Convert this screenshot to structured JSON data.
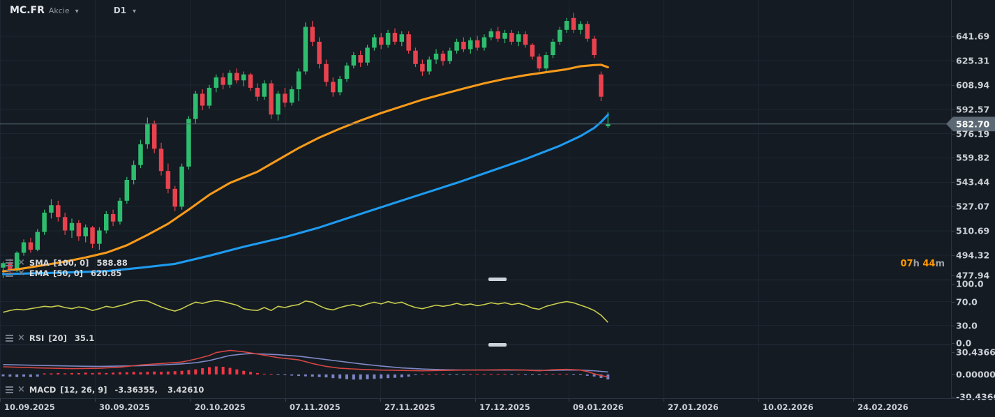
{
  "header": {
    "ticker": "MC.FR",
    "instrument_type": "Akcie",
    "timeframe": "D1"
  },
  "icons": {
    "chevron_down": "▾",
    "close": "×"
  },
  "legend": {
    "ma1": {
      "name": "SMA",
      "params": "[100, 0]",
      "value": "588.88"
    },
    "ma2": {
      "name": "EMA",
      "params": "[50, 0]",
      "value": "620.85"
    },
    "rsi": {
      "name": "RSI",
      "params": "[20]",
      "value": "35.1"
    },
    "macd": {
      "name": "MACD",
      "params": "[12, 26, 9]",
      "value1": "-3.36355,",
      "value2": "3.42610"
    }
  },
  "countdown": {
    "hours": "07",
    "hours_unit": "h",
    "minutes": "44",
    "minutes_unit": "m"
  },
  "axes": {
    "price_labels": [
      "641.69",
      "625.31",
      "608.94",
      "592.57",
      "576.19",
      "559.82",
      "543.44",
      "527.07",
      "510.69",
      "494.32",
      "477.94"
    ],
    "current_price_label": "582.70",
    "rsi_labels": [
      [
        "100.0",
        100
      ],
      [
        "70.0",
        70
      ],
      [
        "30.0",
        30
      ],
      [
        "0.0",
        0
      ]
    ],
    "macd_labels": [
      [
        "30.43660",
        30.4366
      ],
      [
        "0.00000",
        0
      ],
      [
        "-30.4366",
        -30.4366
      ]
    ],
    "dates": [
      "10.09.2025",
      "30.09.2025",
      "20.10.2025",
      "07.11.2025",
      "27.11.2025",
      "17.12.2025",
      "09.01.2026",
      "27.01.2026",
      "10.02.2026",
      "24.02.2026"
    ]
  },
  "colors": {
    "background": "#141b22",
    "grid": "#1d2631",
    "divider": "#232d3a",
    "axis_border": "#2a3440",
    "axis_text": "#ccd0d6",
    "bull": "#2ebd6e",
    "bear": "#e8424e",
    "ema_line": "#f79a1b",
    "sma_line": "#1e9bf0",
    "rsi_line": "#c9cd4e",
    "macd_line": "#d64543",
    "signal_line": "#8089c6",
    "hist_positive": "#f23645",
    "hist_negative": "#7c85c7",
    "price_line": "#5a6673",
    "price_tag_bg": "#5c6874",
    "countdown": "#ff9800",
    "grip": "#cfd4da"
  },
  "chart_data": {
    "type": "candlestick",
    "symbol": "MC.FR",
    "timeframe": "D1",
    "current_price": 582.7,
    "price_ylim": [
      477.94,
      657.5
    ],
    "candles_ohlc": [
      [
        486,
        490,
        479,
        489
      ],
      [
        489,
        492,
        482,
        484
      ],
      [
        484,
        497,
        483,
        496
      ],
      [
        496,
        505,
        494,
        503
      ],
      [
        503,
        506,
        496,
        498
      ],
      [
        498,
        512,
        497,
        510
      ],
      [
        510,
        525,
        508,
        523
      ],
      [
        523,
        532,
        519,
        528
      ],
      [
        528,
        531,
        517,
        520
      ],
      [
        520,
        523,
        508,
        511
      ],
      [
        511,
        519,
        506,
        516
      ],
      [
        516,
        518,
        504,
        507
      ],
      [
        507,
        515,
        503,
        513
      ],
      [
        513,
        514,
        499,
        502
      ],
      [
        502,
        513,
        498,
        511
      ],
      [
        511,
        524,
        509,
        522
      ],
      [
        522,
        525,
        514,
        517
      ],
      [
        517,
        533,
        515,
        531
      ],
      [
        531,
        547,
        529,
        545
      ],
      [
        545,
        558,
        542,
        555
      ],
      [
        555,
        572,
        553,
        569
      ],
      [
        569,
        587,
        566,
        583
      ],
      [
        583,
        585,
        563,
        566
      ],
      [
        566,
        570,
        548,
        551
      ],
      [
        551,
        556,
        536,
        539
      ],
      [
        539,
        541,
        524,
        527
      ],
      [
        527,
        556,
        525,
        554
      ],
      [
        554,
        588,
        552,
        586
      ],
      [
        586,
        605,
        583,
        603
      ],
      [
        603,
        606,
        592,
        595
      ],
      [
        595,
        609,
        593,
        607
      ],
      [
        607,
        616,
        604,
        614
      ],
      [
        614,
        617,
        606,
        609
      ],
      [
        609,
        619,
        607,
        617
      ],
      [
        617,
        620,
        610,
        612
      ],
      [
        612,
        618,
        608,
        616
      ],
      [
        616,
        617,
        605,
        607
      ],
      [
        607,
        610,
        598,
        601
      ],
      [
        601,
        612,
        599,
        610
      ],
      [
        610,
        612,
        586,
        589
      ],
      [
        589,
        605,
        585,
        603
      ],
      [
        603,
        607,
        594,
        597
      ],
      [
        597,
        608,
        595,
        606
      ],
      [
        606,
        620,
        598,
        618
      ],
      [
        618,
        651,
        616,
        648
      ],
      [
        648,
        652,
        635,
        638
      ],
      [
        638,
        641,
        620,
        623
      ],
      [
        623,
        626,
        608,
        611
      ],
      [
        611,
        614,
        601,
        604
      ],
      [
        604,
        615,
        602,
        613
      ],
      [
        613,
        624,
        611,
        622
      ],
      [
        622,
        631,
        620,
        629
      ],
      [
        629,
        632,
        621,
        624
      ],
      [
        624,
        636,
        622,
        634
      ],
      [
        634,
        643,
        632,
        641
      ],
      [
        641,
        644,
        633,
        636
      ],
      [
        636,
        646,
        634,
        644
      ],
      [
        644,
        647,
        636,
        638
      ],
      [
        638,
        645,
        635,
        643
      ],
      [
        643,
        645,
        630,
        632
      ],
      [
        632,
        634,
        621,
        623
      ],
      [
        623,
        626,
        615,
        618
      ],
      [
        618,
        628,
        616,
        626
      ],
      [
        626,
        633,
        623,
        630
      ],
      [
        630,
        632,
        622,
        625
      ],
      [
        625,
        634,
        623,
        632
      ],
      [
        632,
        640,
        630,
        638
      ],
      [
        638,
        641,
        631,
        633
      ],
      [
        633,
        641,
        630,
        639
      ],
      [
        639,
        642,
        632,
        634
      ],
      [
        634,
        643,
        632,
        641
      ],
      [
        641,
        647,
        639,
        645
      ],
      [
        645,
        648,
        638,
        640
      ],
      [
        640,
        646,
        637,
        644
      ],
      [
        644,
        646,
        636,
        638
      ],
      [
        638,
        645,
        635,
        643
      ],
      [
        643,
        645,
        634,
        636
      ],
      [
        636,
        637,
        626,
        628
      ],
      [
        628,
        630,
        618,
        620
      ],
      [
        620,
        631,
        618,
        629
      ],
      [
        629,
        640,
        627,
        638
      ],
      [
        638,
        648,
        636,
        646
      ],
      [
        646,
        654,
        644,
        652
      ],
      [
        654,
        657.5,
        644,
        646
      ],
      [
        646,
        652,
        643,
        650
      ],
      [
        650,
        652,
        638,
        640
      ],
      [
        640,
        642,
        627,
        629
      ],
      [
        616,
        618,
        598,
        601
      ],
      [
        581.2,
        590.8,
        579.8,
        582.7
      ]
    ],
    "overlays": [
      {
        "name": "EMA [50, 0]",
        "value": 620.85,
        "color_key": "ema_line",
        "anchors": [
          [
            0,
            483.5
          ],
          [
            3,
            485.5
          ],
          [
            6,
            487.7
          ],
          [
            9,
            490
          ],
          [
            12,
            492.8
          ],
          [
            15,
            496
          ],
          [
            18,
            501
          ],
          [
            21,
            508
          ],
          [
            24,
            515.5
          ],
          [
            27,
            525
          ],
          [
            30,
            535
          ],
          [
            33,
            543
          ],
          [
            37,
            550.5
          ],
          [
            40,
            558.5
          ],
          [
            43,
            566.5
          ],
          [
            46,
            573.5
          ],
          [
            49,
            579.5
          ],
          [
            52,
            585
          ],
          [
            55,
            590
          ],
          [
            58,
            594.5
          ],
          [
            61,
            599
          ],
          [
            64,
            602.8
          ],
          [
            67,
            606.5
          ],
          [
            70,
            610
          ],
          [
            73,
            613
          ],
          [
            76,
            615.5
          ],
          [
            79,
            617.5
          ],
          [
            82,
            619.5
          ],
          [
            84,
            621.5
          ],
          [
            86,
            622.3
          ],
          [
            87,
            622.5
          ],
          [
            88,
            620.85
          ]
        ]
      },
      {
        "name": "SMA [100, 0]",
        "value": 588.88,
        "color_key": "sma_line",
        "anchors": [
          [
            0,
            481.6
          ],
          [
            5,
            482.2
          ],
          [
            10,
            482.8
          ],
          [
            15,
            483.6
          ],
          [
            20,
            485.9
          ],
          [
            25,
            488.5
          ],
          [
            30,
            494
          ],
          [
            35,
            500
          ],
          [
            41,
            506.5
          ],
          [
            46,
            513
          ],
          [
            51,
            520.6
          ],
          [
            56,
            528.1
          ],
          [
            61,
            535.6
          ],
          [
            66,
            543
          ],
          [
            71,
            551
          ],
          [
            76,
            559
          ],
          [
            81,
            568
          ],
          [
            84,
            574.5
          ],
          [
            86,
            580
          ],
          [
            87,
            584
          ],
          [
            88,
            588.88
          ]
        ]
      }
    ],
    "rsi": {
      "name": "RSI [20]",
      "value": 35.1,
      "ylim": [
        0,
        100
      ],
      "guides": [
        70,
        30
      ],
      "values": [
        52,
        55,
        57,
        56,
        58,
        60,
        62,
        61,
        63,
        60,
        58,
        61,
        59,
        55,
        58,
        62,
        60,
        63,
        66,
        70,
        72,
        71,
        66,
        61,
        57,
        54,
        58,
        64,
        69,
        67,
        70,
        72,
        70,
        67,
        64,
        58,
        56,
        55,
        60,
        55,
        62,
        60,
        63,
        65,
        71,
        69,
        63,
        58,
        56,
        60,
        63,
        65,
        62,
        66,
        69,
        66,
        70,
        67,
        69,
        64,
        60,
        58,
        61,
        64,
        62,
        64,
        67,
        64,
        66,
        63,
        65,
        68,
        66,
        68,
        65,
        67,
        64,
        59,
        57,
        62,
        65,
        68,
        70,
        68,
        64,
        60,
        55,
        47,
        35.1
      ]
    },
    "macd": {
      "name": "MACD [12, 26, 9]",
      "macd_value": -3.36355,
      "signal_value": 3.4261,
      "ylim": [
        -30.4366,
        30.4366
      ],
      "macd_anchors": [
        [
          0,
          10.5
        ],
        [
          5,
          9
        ],
        [
          10,
          8
        ],
        [
          14,
          8.5
        ],
        [
          17,
          10
        ],
        [
          20,
          13
        ],
        [
          23,
          15
        ],
        [
          26,
          17
        ],
        [
          28,
          21
        ],
        [
          30,
          26
        ],
        [
          31,
          30
        ],
        [
          33,
          33
        ],
        [
          35,
          31
        ],
        [
          37,
          28
        ],
        [
          40,
          23
        ],
        [
          43,
          20
        ],
        [
          45,
          15
        ],
        [
          47,
          11
        ],
        [
          49,
          8.5
        ],
        [
          52,
          7
        ],
        [
          55,
          6
        ],
        [
          58,
          5.5
        ],
        [
          61,
          5
        ],
        [
          64,
          5.5
        ],
        [
          67,
          6
        ],
        [
          70,
          6
        ],
        [
          73,
          6.5
        ],
        [
          76,
          6
        ],
        [
          78,
          5
        ],
        [
          80,
          6.5
        ],
        [
          82,
          7
        ],
        [
          84,
          6
        ],
        [
          85,
          4
        ],
        [
          86,
          1
        ],
        [
          87,
          -1.5
        ],
        [
          88,
          -3.36
        ]
      ],
      "signal_anchors": [
        [
          0,
          13.5
        ],
        [
          5,
          12.5
        ],
        [
          10,
          11.5
        ],
        [
          14,
          11
        ],
        [
          17,
          11.5
        ],
        [
          20,
          12
        ],
        [
          23,
          13
        ],
        [
          26,
          14.5
        ],
        [
          28,
          16
        ],
        [
          30,
          19
        ],
        [
          33,
          26
        ],
        [
          35,
          28
        ],
        [
          36,
          28.5
        ],
        [
          38,
          28
        ],
        [
          40,
          27
        ],
        [
          43,
          25
        ],
        [
          46,
          21.5
        ],
        [
          49,
          18
        ],
        [
          52,
          14.5
        ],
        [
          55,
          11.5
        ],
        [
          58,
          9
        ],
        [
          61,
          7.5
        ],
        [
          64,
          6.5
        ],
        [
          67,
          6
        ],
        [
          70,
          6
        ],
        [
          73,
          6
        ],
        [
          76,
          6
        ],
        [
          79,
          5.5
        ],
        [
          82,
          6
        ],
        [
          84,
          6
        ],
        [
          86,
          5
        ],
        [
          87,
          4.2
        ],
        [
          88,
          3.43
        ]
      ],
      "hist": [
        -2.5,
        -3,
        -3.5,
        -3,
        -3.5,
        -3,
        1.5,
        1.5,
        2,
        1.5,
        2,
        2,
        2.5,
        2,
        2.5,
        2,
        2.5,
        3,
        3,
        3.5,
        3,
        3.5,
        4,
        3.5,
        4,
        4.5,
        5,
        6,
        7,
        8.5,
        10,
        11,
        10.5,
        9,
        7,
        5,
        3.5,
        2,
        1,
        0.5,
        -0.5,
        -1,
        -1.5,
        -2,
        -2.5,
        -3,
        -3.5,
        -4,
        -5,
        -5.5,
        -6.5,
        -7,
        -7,
        -6.5,
        -6,
        -5.5,
        -5,
        -4.5,
        -4,
        -3,
        -1,
        0.6,
        0.8,
        0.6,
        0.4,
        -0.4,
        -0.6,
        -0.5,
        0.5,
        0.6,
        0.5,
        0.7,
        0.5,
        0.6,
        -0.5,
        0.6,
        -0.6,
        -0.7,
        -0.9,
        0.6,
        0.9,
        1,
        0.9,
        -0.6,
        -0.9,
        -1.8,
        -2.8,
        -4.8,
        -6.79
      ]
    }
  }
}
